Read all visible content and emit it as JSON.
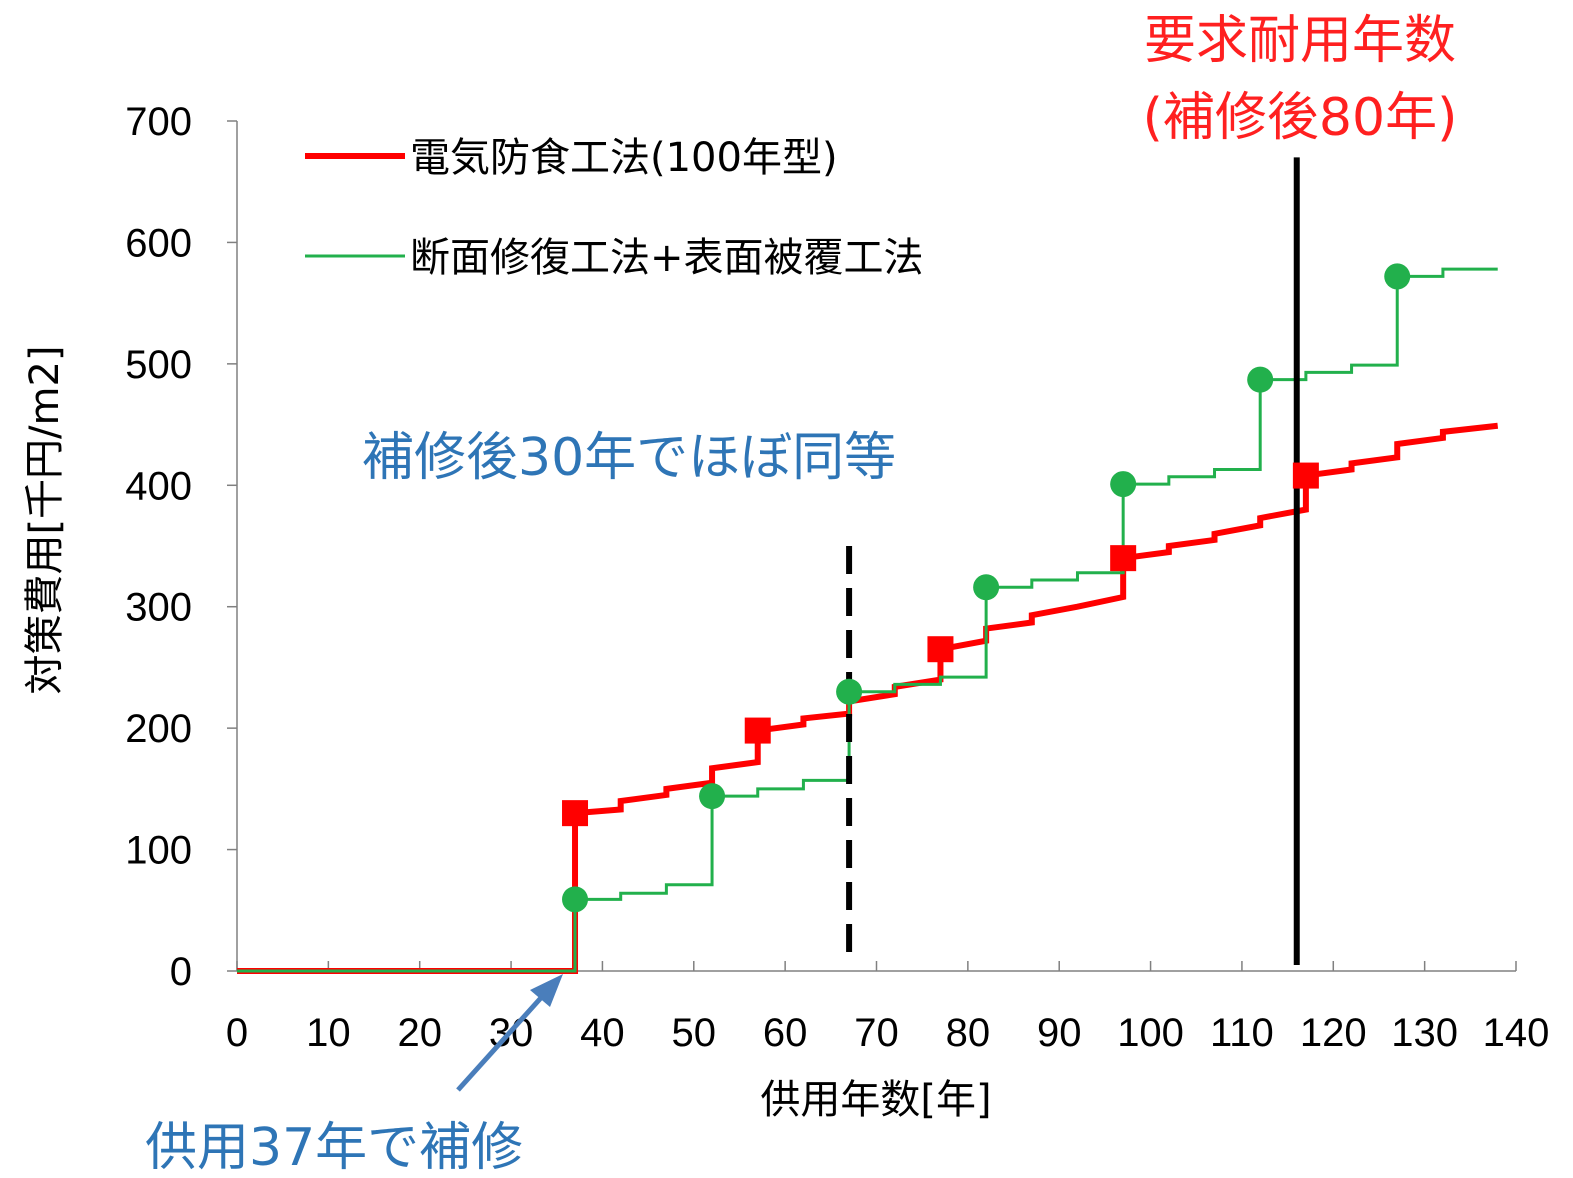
{
  "chart_data": {
    "type": "line",
    "xlabel": "供用年数[年]",
    "ylabel": "対策費用[千円/m2]",
    "xlim": [
      0,
      140
    ],
    "ylim": [
      0,
      700
    ],
    "x_ticks": [
      0,
      10,
      20,
      30,
      40,
      50,
      60,
      70,
      80,
      90,
      100,
      110,
      120,
      130,
      140
    ],
    "y_ticks": [
      0,
      100,
      200,
      300,
      400,
      500,
      600,
      700
    ],
    "grid": false,
    "legend_position": "top-left",
    "series": [
      {
        "name": "電気防食工法(100年型)",
        "color": "#ff0000",
        "style": "step-line",
        "points": [
          [
            0,
            0
          ],
          [
            37,
            0
          ],
          [
            37,
            130
          ],
          [
            42,
            133
          ],
          [
            42,
            140
          ],
          [
            47,
            145
          ],
          [
            47,
            150
          ],
          [
            52,
            155
          ],
          [
            52,
            167
          ],
          [
            57,
            172
          ],
          [
            57,
            198
          ],
          [
            62,
            203
          ],
          [
            62,
            208
          ],
          [
            67,
            212
          ],
          [
            67,
            222
          ],
          [
            72,
            228
          ],
          [
            72,
            234
          ],
          [
            77,
            240
          ],
          [
            77,
            265
          ],
          [
            82,
            272
          ],
          [
            82,
            282
          ],
          [
            87,
            287
          ],
          [
            87,
            293
          ],
          [
            92,
            300
          ],
          [
            92,
            300
          ],
          [
            97,
            308
          ],
          [
            97,
            340
          ],
          [
            102,
            345
          ],
          [
            102,
            350
          ],
          [
            107,
            355
          ],
          [
            107,
            360
          ],
          [
            112,
            367
          ],
          [
            112,
            373
          ],
          [
            117,
            380
          ],
          [
            117,
            408
          ],
          [
            122,
            413
          ],
          [
            122,
            418
          ],
          [
            127,
            423
          ],
          [
            127,
            434
          ],
          [
            132,
            439
          ],
          [
            132,
            444
          ],
          [
            138,
            449
          ]
        ],
        "markers": [
          [
            37,
            130
          ],
          [
            57,
            198
          ],
          [
            77,
            265
          ],
          [
            97,
            340
          ],
          [
            117,
            408
          ]
        ],
        "marker_shape": "square"
      },
      {
        "name": "断面修復工法+表面被覆工法",
        "color": "#22b04c",
        "style": "step-line",
        "points": [
          [
            0,
            0
          ],
          [
            37,
            0
          ],
          [
            37,
            59
          ],
          [
            42,
            59
          ],
          [
            42,
            64
          ],
          [
            47,
            64
          ],
          [
            47,
            71
          ],
          [
            52,
            71
          ],
          [
            52,
            144
          ],
          [
            57,
            144
          ],
          [
            57,
            150
          ],
          [
            62,
            150
          ],
          [
            62,
            157
          ],
          [
            67,
            157
          ],
          [
            67,
            230
          ],
          [
            72,
            230
          ],
          [
            72,
            236
          ],
          [
            77,
            236
          ],
          [
            77,
            242
          ],
          [
            82,
            242
          ],
          [
            82,
            316
          ],
          [
            87,
            316
          ],
          [
            87,
            322
          ],
          [
            92,
            322
          ],
          [
            92,
            328
          ],
          [
            97,
            328
          ],
          [
            97,
            401
          ],
          [
            102,
            401
          ],
          [
            102,
            407
          ],
          [
            107,
            407
          ],
          [
            107,
            413
          ],
          [
            112,
            413
          ],
          [
            112,
            487
          ],
          [
            117,
            487
          ],
          [
            117,
            493
          ],
          [
            122,
            493
          ],
          [
            122,
            499
          ],
          [
            127,
            499
          ],
          [
            127,
            572
          ],
          [
            132,
            572
          ],
          [
            132,
            578
          ],
          [
            138,
            578
          ]
        ],
        "markers": [
          [
            37,
            59
          ],
          [
            52,
            144
          ],
          [
            67,
            230
          ],
          [
            82,
            316
          ],
          [
            97,
            401
          ],
          [
            112,
            487
          ],
          [
            127,
            572
          ]
        ],
        "marker_shape": "circle"
      }
    ],
    "reference_lines": [
      {
        "x": 67,
        "style": "dashed",
        "color": "#000000",
        "y_top": 350
      },
      {
        "x": 116,
        "style": "solid",
        "color": "#000000",
        "y_top": 670
      }
    ],
    "annotations": {
      "equal_point": "補修後30年でほぼ同等",
      "repair_point": "供用37年で補修",
      "required_life_line1": "要求耐用年数",
      "required_life_line2": "(補修後80年)"
    },
    "annotation_colors": {
      "equal_point": "#2e75b6",
      "repair_point": "#2e75b6",
      "required_life": "#ff2020",
      "arrow": "#4a7ebb"
    }
  }
}
